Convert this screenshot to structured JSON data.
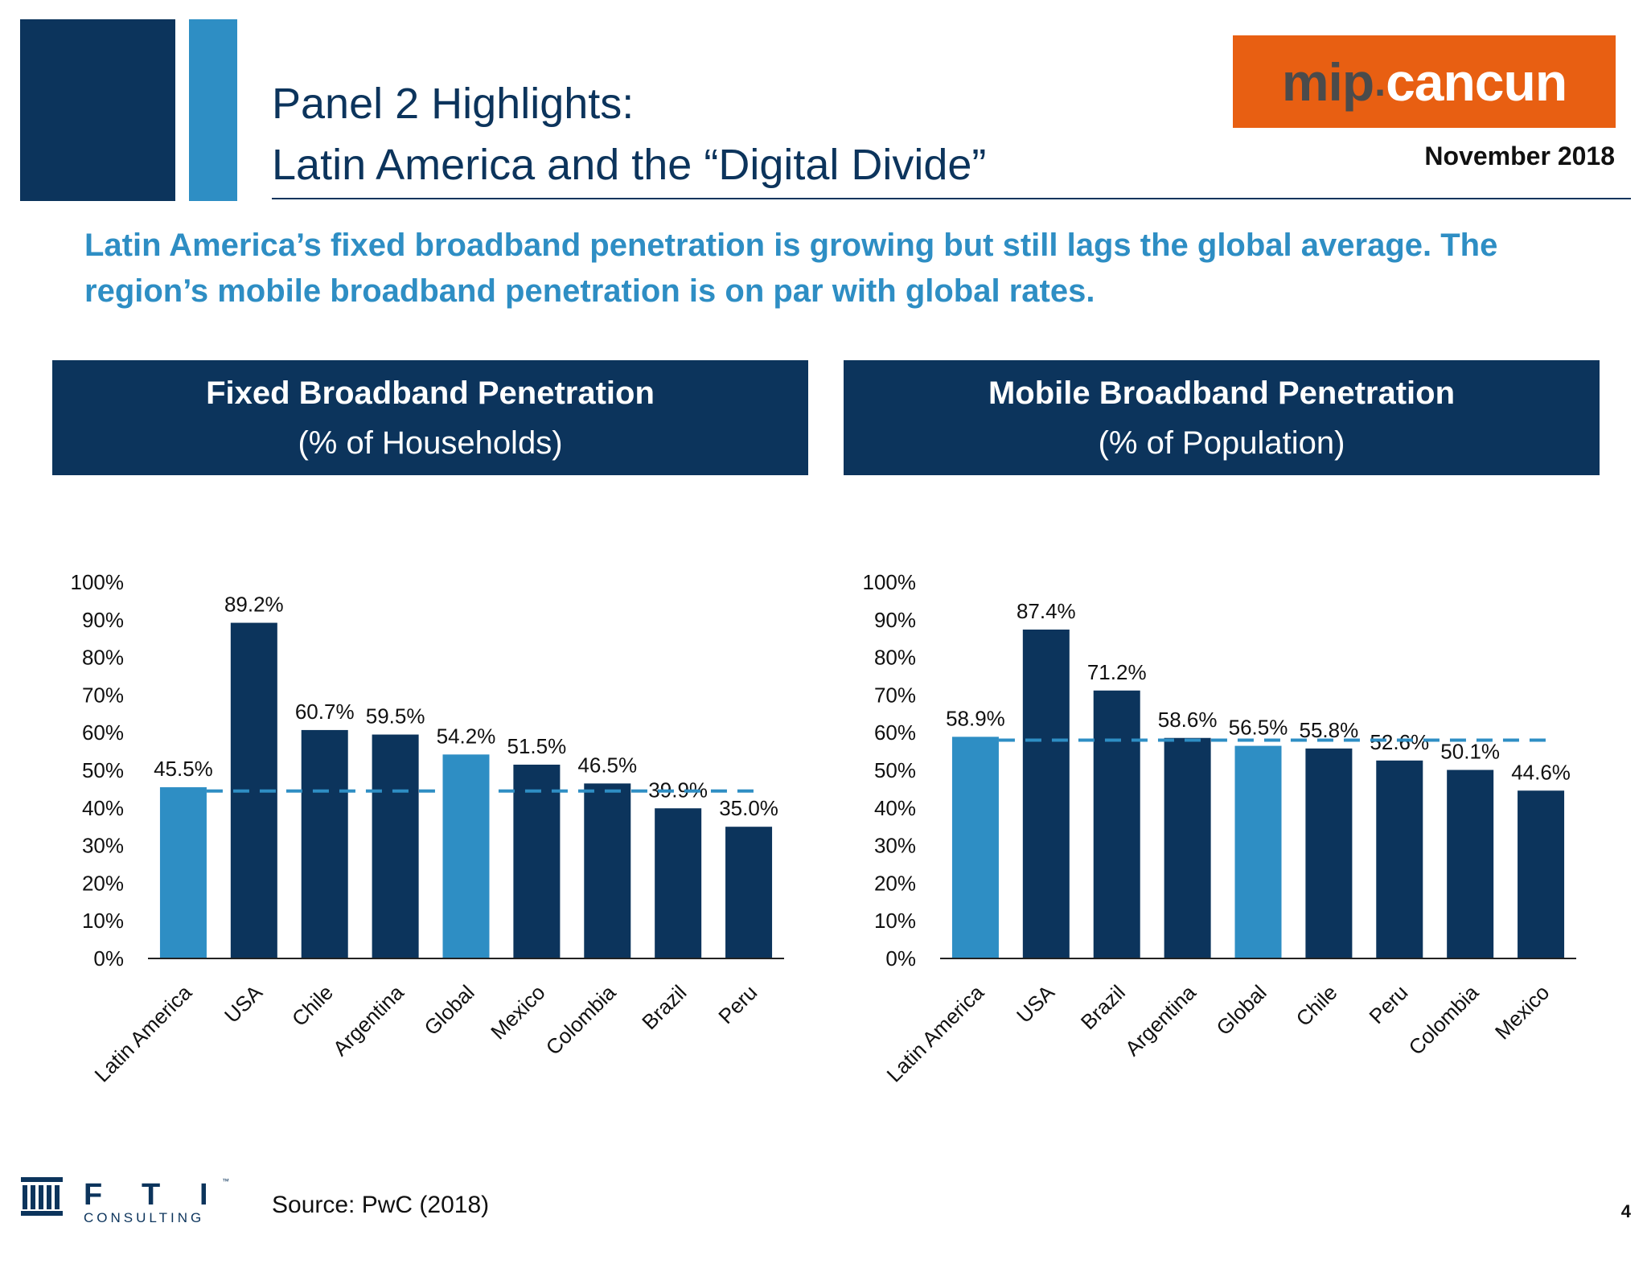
{
  "header": {
    "title_line1": "Panel 2 Highlights:",
    "title_line2": "Latin America and the “Digital Divide”",
    "logo_part1": "mip",
    "logo_dot": ".",
    "logo_part2": "cancun",
    "date": "November 2018"
  },
  "subtitle": "Latin America’s fixed broadband penetration is growing but still lags the global average.  The region’s mobile broadband penetration is on par with global rates.",
  "colors": {
    "dark": "#0c345c",
    "light": "#2e8ec4",
    "accent": "#e85f12"
  },
  "chart_data": [
    {
      "type": "bar",
      "header_title": "Fixed Broadband Penetration",
      "header_subtitle": "(% of Households)",
      "categories": [
        "Latin America",
        "USA",
        "Chile",
        "Argentina",
        "Global",
        "Mexico",
        "Colombia",
        "Brazil",
        "Peru"
      ],
      "values": [
        45.5,
        89.2,
        60.7,
        59.5,
        54.2,
        51.5,
        46.5,
        39.9,
        35.0
      ],
      "data_labels": [
        "45.5%",
        "89.2%",
        "60.7%",
        "59.5%",
        "54.2%",
        "51.5%",
        "46.5%",
        "39.9%",
        "35.0%"
      ],
      "highlighted": [
        "Latin America",
        "Global"
      ],
      "reference_line": 44.5,
      "ylim": [
        0,
        100
      ],
      "yticks": [
        0,
        10,
        20,
        30,
        40,
        50,
        60,
        70,
        80,
        90,
        100
      ],
      "ytick_labels": [
        "0%",
        "10%",
        "20%",
        "30%",
        "40%",
        "50%",
        "60%",
        "70%",
        "80%",
        "90%",
        "100%"
      ],
      "grid": false
    },
    {
      "type": "bar",
      "header_title": "Mobile Broadband Penetration",
      "header_subtitle": "(% of Population)",
      "categories": [
        "Latin America",
        "USA",
        "Brazil",
        "Argentina",
        "Global",
        "Chile",
        "Peru",
        "Colombia",
        "Mexico"
      ],
      "values": [
        58.9,
        87.4,
        71.2,
        58.6,
        56.5,
        55.8,
        52.6,
        50.1,
        44.6
      ],
      "data_labels": [
        "58.9%",
        "87.4%",
        "71.2%",
        "58.6%",
        "56.5%",
        "55.8%",
        "52.6%",
        "50.1%",
        "44.6%"
      ],
      "highlighted": [
        "Latin America",
        "Global"
      ],
      "reference_line": 58,
      "ylim": [
        0,
        100
      ],
      "yticks": [
        0,
        10,
        20,
        30,
        40,
        50,
        60,
        70,
        80,
        90,
        100
      ],
      "ytick_labels": [
        "0%",
        "10%",
        "20%",
        "30%",
        "40%",
        "50%",
        "60%",
        "70%",
        "80%",
        "90%",
        "100%"
      ],
      "grid": false
    }
  ],
  "footer": {
    "fti_letters": [
      "F",
      "T",
      "I"
    ],
    "fti_word": "CONSULTING",
    "fti_tm": "™",
    "source": "Source: PwC (2018)",
    "page_number": "4"
  }
}
